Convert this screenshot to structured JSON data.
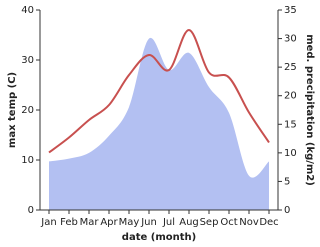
{
  "chart_data": {
    "type": "line_area",
    "x_label": "date (month)",
    "y_label": "max temp (C)",
    "y2_label": "med. precipitation (kg/m2)",
    "categories": [
      "Jan",
      "Feb",
      "Mar",
      "Apr",
      "May",
      "Jun",
      "Jul",
      "Aug",
      "Sep",
      "Oct",
      "Nov",
      "Dec"
    ],
    "series": [
      {
        "name": "max temp",
        "color": "#c8504f",
        "values": [
          11.5,
          14.5,
          18,
          21,
          27,
          31,
          28,
          36,
          27.5,
          26.5,
          19.5,
          13.5
        ]
      },
      {
        "name": "med. precipitation",
        "color": "#b3c0f2",
        "axis": "y2",
        "values": [
          8.5,
          9,
          10,
          13,
          18,
          30,
          24.5,
          27.5,
          21.5,
          17,
          6,
          8.5
        ]
      }
    ],
    "ylim": [
      0,
      40
    ],
    "yticks": [
      0,
      10,
      20,
      30,
      40
    ],
    "y2lim": [
      0,
      35
    ],
    "y2ticks": [
      0,
      5,
      10,
      15,
      20,
      25,
      30,
      35
    ]
  }
}
